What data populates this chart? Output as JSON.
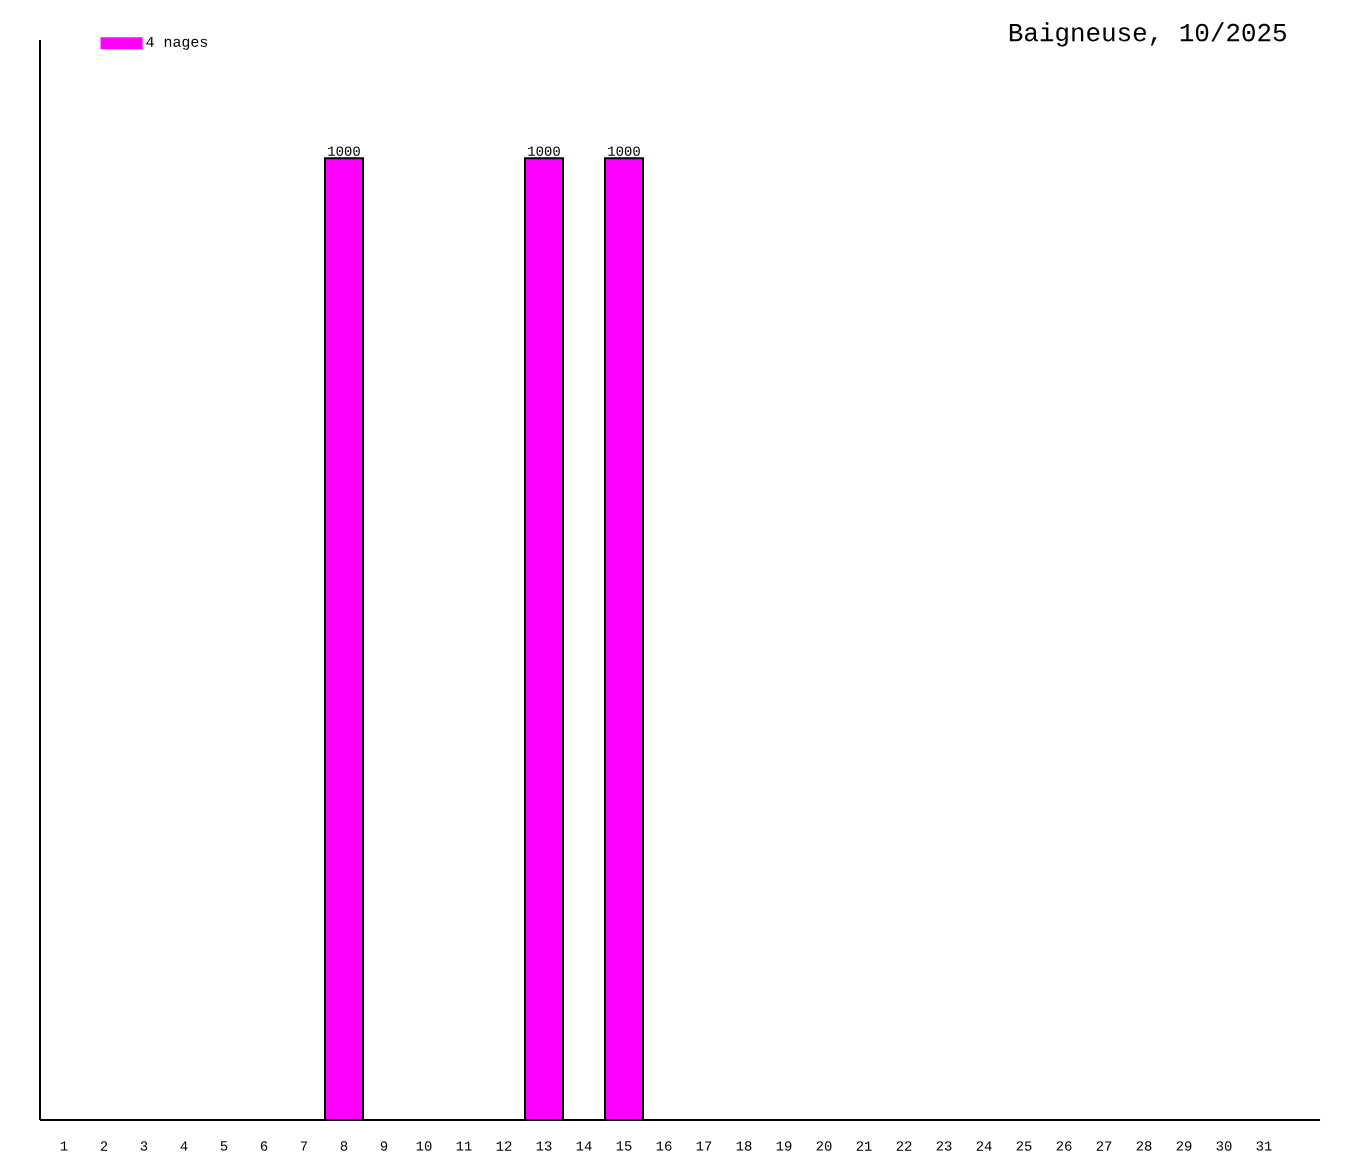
{
  "chart_data": {
    "type": "bar",
    "title": "Baigneuse, 10/2025",
    "categories": [
      "1",
      "2",
      "3",
      "4",
      "5",
      "6",
      "7",
      "8",
      "9",
      "10",
      "11",
      "12",
      "13",
      "14",
      "15",
      "16",
      "17",
      "18",
      "19",
      "20",
      "21",
      "22",
      "23",
      "24",
      "25",
      "26",
      "27",
      "28",
      "29",
      "30",
      "31"
    ],
    "series": [
      {
        "name": "4 nages",
        "color": "#ff00ff",
        "values": [
          null,
          null,
          null,
          null,
          null,
          null,
          null,
          1000,
          null,
          null,
          null,
          null,
          1000,
          null,
          1000,
          null,
          null,
          null,
          null,
          null,
          null,
          null,
          null,
          null,
          null,
          null,
          null,
          null,
          null,
          null,
          null
        ],
        "value_labels": [
          null,
          null,
          null,
          null,
          null,
          null,
          null,
          "1000",
          null,
          null,
          null,
          null,
          "1000",
          null,
          "1000",
          null,
          null,
          null,
          null,
          null,
          null,
          null,
          null,
          null,
          null,
          null,
          null,
          null,
          null,
          null,
          null
        ]
      }
    ],
    "legend": "top left",
    "tick_labels": "x"
  }
}
